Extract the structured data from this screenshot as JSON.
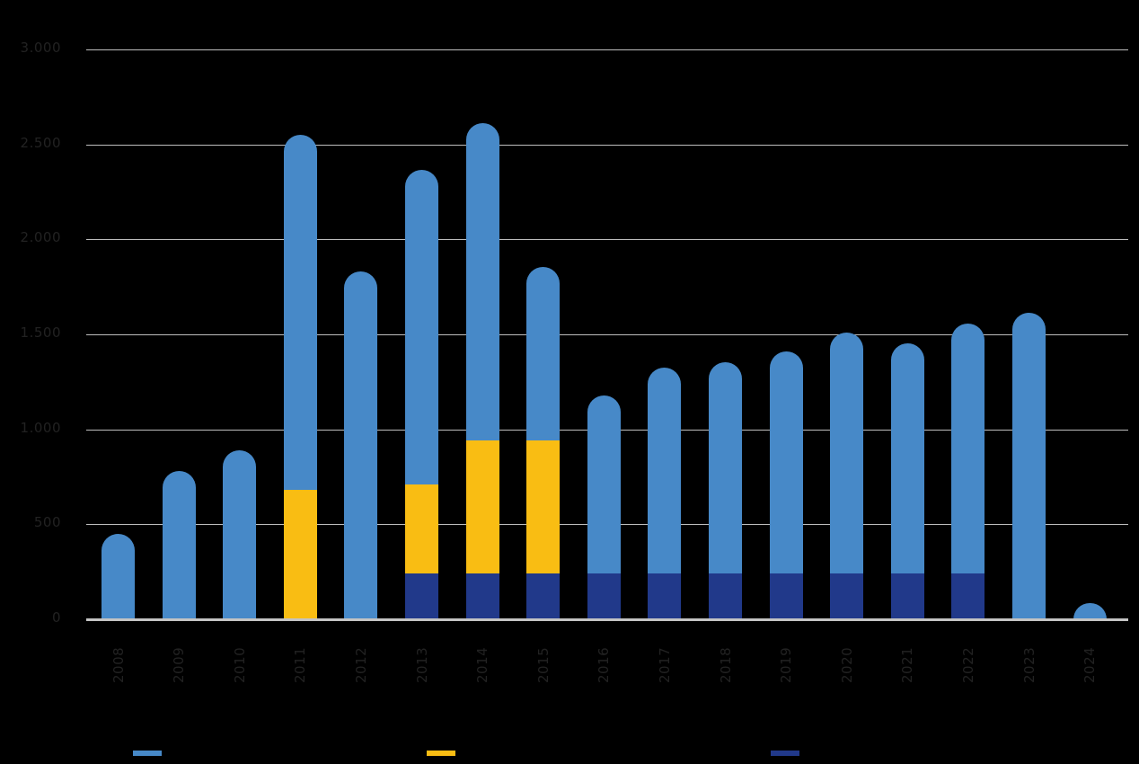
{
  "chart_data": {
    "type": "bar",
    "stacked": true,
    "title": "",
    "xlabel": "",
    "ylabel": "",
    "ylim": [
      0,
      3000
    ],
    "yticks": [
      0,
      500,
      1000,
      1500,
      2000,
      2500,
      3000
    ],
    "ytick_labels": [
      "0",
      "500",
      "1.000",
      "1.500",
      "2.000",
      "2.500",
      "3.000"
    ],
    "grid": true,
    "legend_position": "bottom",
    "categories": [
      "2008",
      "2009",
      "2010",
      "2011",
      "2012",
      "2013",
      "2014",
      "2015",
      "2016",
      "2017",
      "2018",
      "2019",
      "2020",
      "2021",
      "2022",
      "2023",
      "2024"
    ],
    "series": [
      {
        "name": "",
        "color": "#21398a",
        "values": [
          0,
          0,
          0,
          0,
          0,
          240,
          240,
          240,
          240,
          240,
          240,
          240,
          240,
          240,
          240,
          0,
          0
        ]
      },
      {
        "name": "",
        "color": "#f9bd13",
        "values": [
          0,
          0,
          0,
          680,
          0,
          470,
          700,
          700,
          0,
          0,
          0,
          0,
          0,
          0,
          0,
          0,
          0
        ]
      },
      {
        "name": "",
        "color": "#4789c8",
        "values": [
          450,
          780,
          890,
          1870,
          1830,
          1655,
          1670,
          915,
          940,
          1085,
          1115,
          1170,
          1270,
          1215,
          1315,
          1615,
          85
        ]
      }
    ],
    "totals": [
      450,
      780,
      890,
      2550,
      1830,
      2365,
      2610,
      1855,
      1180,
      1325,
      1355,
      1410,
      1510,
      1455,
      1555,
      1615,
      85
    ]
  },
  "legend": [
    {
      "label": "",
      "color": "#4789c8"
    },
    {
      "label": "",
      "color": "#f9bd13"
    },
    {
      "label": "",
      "color": "#21398a"
    }
  ]
}
